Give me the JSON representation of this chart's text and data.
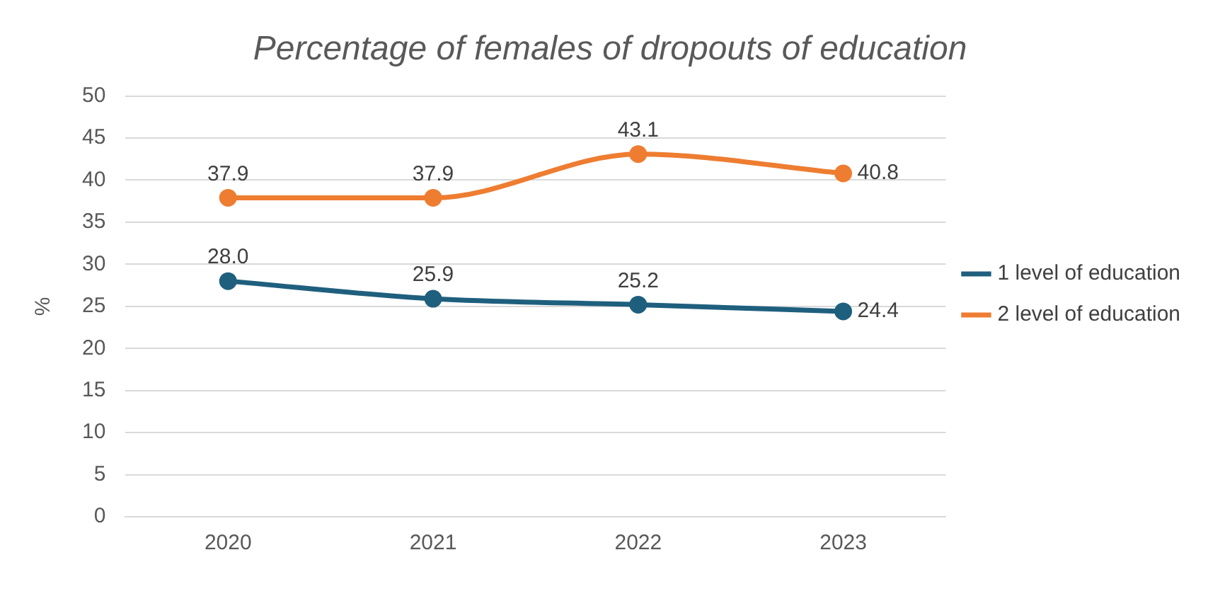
{
  "chart_data": {
    "type": "line",
    "title": "Percentage of females of dropouts of education",
    "ylabel": "%",
    "categories": [
      "2020",
      "2021",
      "2022",
      "2023"
    ],
    "series": [
      {
        "name": "1 level of education",
        "color": "#1f5f7e",
        "values": [
          28.0,
          25.9,
          25.2,
          24.4
        ],
        "value_labels": [
          "28.0",
          "25.9",
          "25.2",
          "24.4"
        ]
      },
      {
        "name": "2 level of education",
        "color": "#ee7d31",
        "values": [
          37.9,
          37.9,
          43.1,
          40.8
        ],
        "value_labels": [
          "37.9",
          "37.9",
          "43.1",
          "40.8"
        ]
      }
    ],
    "ylim": [
      0,
      50
    ],
    "yticks": [
      0,
      5,
      10,
      15,
      20,
      25,
      30,
      35,
      40,
      45,
      50
    ],
    "grid": "y",
    "legend": "right",
    "marker": "circle",
    "line_style": "solid"
  }
}
